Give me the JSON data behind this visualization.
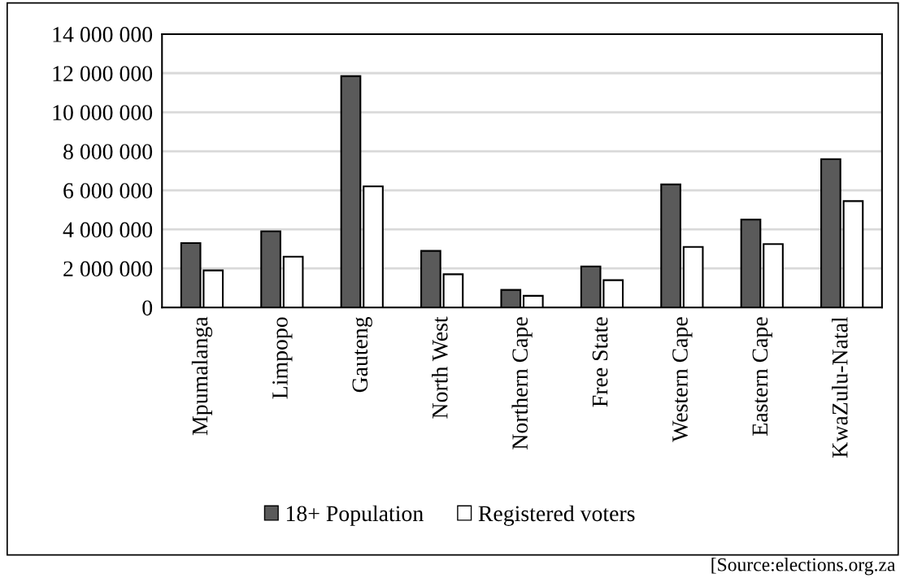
{
  "chart_data": {
    "type": "bar",
    "categories": [
      "Mpumalanga",
      "Limpopo",
      "Gauteng",
      "North West",
      "Northern Cape",
      "Free State",
      "Western Cape",
      "Eastern Cape",
      "KwaZulu-Natal"
    ],
    "series": [
      {
        "name": "18+ Population",
        "color": "#5a5a5a",
        "values": [
          3300000,
          3900000,
          11850000,
          2900000,
          900000,
          2100000,
          6300000,
          4500000,
          7600000
        ]
      },
      {
        "name": "Registered voters",
        "color": "#ffffff",
        "values": [
          1900000,
          2600000,
          6200000,
          1700000,
          600000,
          1400000,
          3100000,
          3250000,
          5450000
        ]
      }
    ],
    "ylim": [
      0,
      14000000
    ],
    "yticks": [
      {
        "value": 0,
        "label": "0"
      },
      {
        "value": 2000000,
        "label": "2 000 000"
      },
      {
        "value": 4000000,
        "label": "4 000 000"
      },
      {
        "value": 6000000,
        "label": "6 000 000"
      },
      {
        "value": 8000000,
        "label": "8 000 000"
      },
      {
        "value": 10000000,
        "label": "10 000 000"
      },
      {
        "value": 12000000,
        "label": "12 000 000"
      },
      {
        "value": 14000000,
        "label": "14 000 000"
      }
    ],
    "grid": "y",
    "legend": "bottom",
    "annotations": [
      "[Source:elections.org.za"
    ]
  }
}
